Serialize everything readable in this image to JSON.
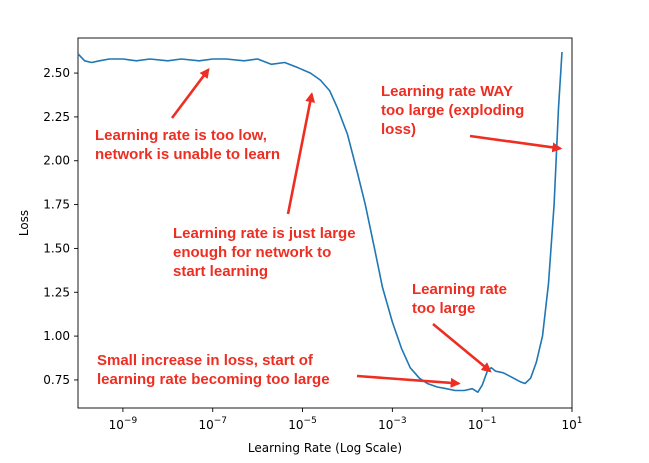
{
  "chart_data": {
    "type": "line",
    "xscale": "log",
    "xlabel": "Learning Rate (Log Scale)",
    "ylabel": "Loss",
    "xlim": [
      1e-10,
      10
    ],
    "ylim": [
      0.59,
      2.7
    ],
    "grid": false,
    "line_color": "#1f77b4",
    "annotation_color": "#ee2e22",
    "x_ticks": [
      {
        "value": 1e-09,
        "base": "10",
        "exp": "−9"
      },
      {
        "value": 1e-07,
        "base": "10",
        "exp": "−7"
      },
      {
        "value": 1e-05,
        "base": "10",
        "exp": "−5"
      },
      {
        "value": 0.001,
        "base": "10",
        "exp": "−3"
      },
      {
        "value": 0.1,
        "base": "10",
        "exp": "−1"
      },
      {
        "value": 10,
        "base": "10",
        "exp": "1"
      }
    ],
    "y_ticks": [
      "0.75",
      "1.00",
      "1.25",
      "1.50",
      "1.75",
      "2.00",
      "2.25",
      "2.50"
    ],
    "series": [
      {
        "points": [
          [
            1e-10,
            2.61
          ],
          [
            1.4e-10,
            2.57
          ],
          [
            2e-10,
            2.56
          ],
          [
            3e-10,
            2.57
          ],
          [
            5e-10,
            2.58
          ],
          [
            1e-09,
            2.58
          ],
          [
            2e-09,
            2.57
          ],
          [
            4e-09,
            2.58
          ],
          [
            1e-08,
            2.57
          ],
          [
            2e-08,
            2.58
          ],
          [
            5e-08,
            2.57
          ],
          [
            1e-07,
            2.58
          ],
          [
            2e-07,
            2.58
          ],
          [
            5e-07,
            2.57
          ],
          [
            1e-06,
            2.58
          ],
          [
            2e-06,
            2.55
          ],
          [
            4e-06,
            2.56
          ],
          [
            8e-06,
            2.53
          ],
          [
            1.5e-05,
            2.5
          ],
          [
            2.5e-05,
            2.46
          ],
          [
            4e-05,
            2.4
          ],
          [
            6e-05,
            2.3
          ],
          [
            0.0001,
            2.15
          ],
          [
            0.00016,
            1.95
          ],
          [
            0.00025,
            1.75
          ],
          [
            0.0004,
            1.5
          ],
          [
            0.0006,
            1.28
          ],
          [
            0.001,
            1.08
          ],
          [
            0.0016,
            0.93
          ],
          [
            0.0025,
            0.82
          ],
          [
            0.004,
            0.76
          ],
          [
            0.006,
            0.73
          ],
          [
            0.01,
            0.71
          ],
          [
            0.016,
            0.7
          ],
          [
            0.025,
            0.69
          ],
          [
            0.04,
            0.69
          ],
          [
            0.06,
            0.7
          ],
          [
            0.08,
            0.68
          ],
          [
            0.1,
            0.72
          ],
          [
            0.13,
            0.8
          ],
          [
            0.16,
            0.82
          ],
          [
            0.2,
            0.8
          ],
          [
            0.3,
            0.79
          ],
          [
            0.5,
            0.76
          ],
          [
            0.7,
            0.74
          ],
          [
            0.9,
            0.73
          ],
          [
            1.2,
            0.76
          ],
          [
            1.6,
            0.85
          ],
          [
            2.2,
            1.0
          ],
          [
            3.0,
            1.3
          ],
          [
            4.0,
            1.75
          ],
          [
            5.0,
            2.3
          ],
          [
            6.0,
            2.62
          ]
        ]
      }
    ],
    "annotations": [
      {
        "text": "Learning rate is too low,\nnetwork is unable to learn",
        "arrow_to": [
          8e-08,
          2.52
        ]
      },
      {
        "text": "Learning rate is just large\nenough for network to\nstart learning",
        "arrow_to": [
          1.6e-05,
          2.38
        ]
      },
      {
        "text": "Learning rate WAY\ntoo large (exploding\nloss)",
        "arrow_to": [
          5.5,
          2.07
        ]
      },
      {
        "text": "Learning rate\ntoo large",
        "arrow_to": [
          0.15,
          0.8
        ]
      },
      {
        "text": "Small increase in loss, start of\nlearning rate becoming too large",
        "arrow_to": [
          0.03,
          0.73
        ]
      }
    ]
  }
}
